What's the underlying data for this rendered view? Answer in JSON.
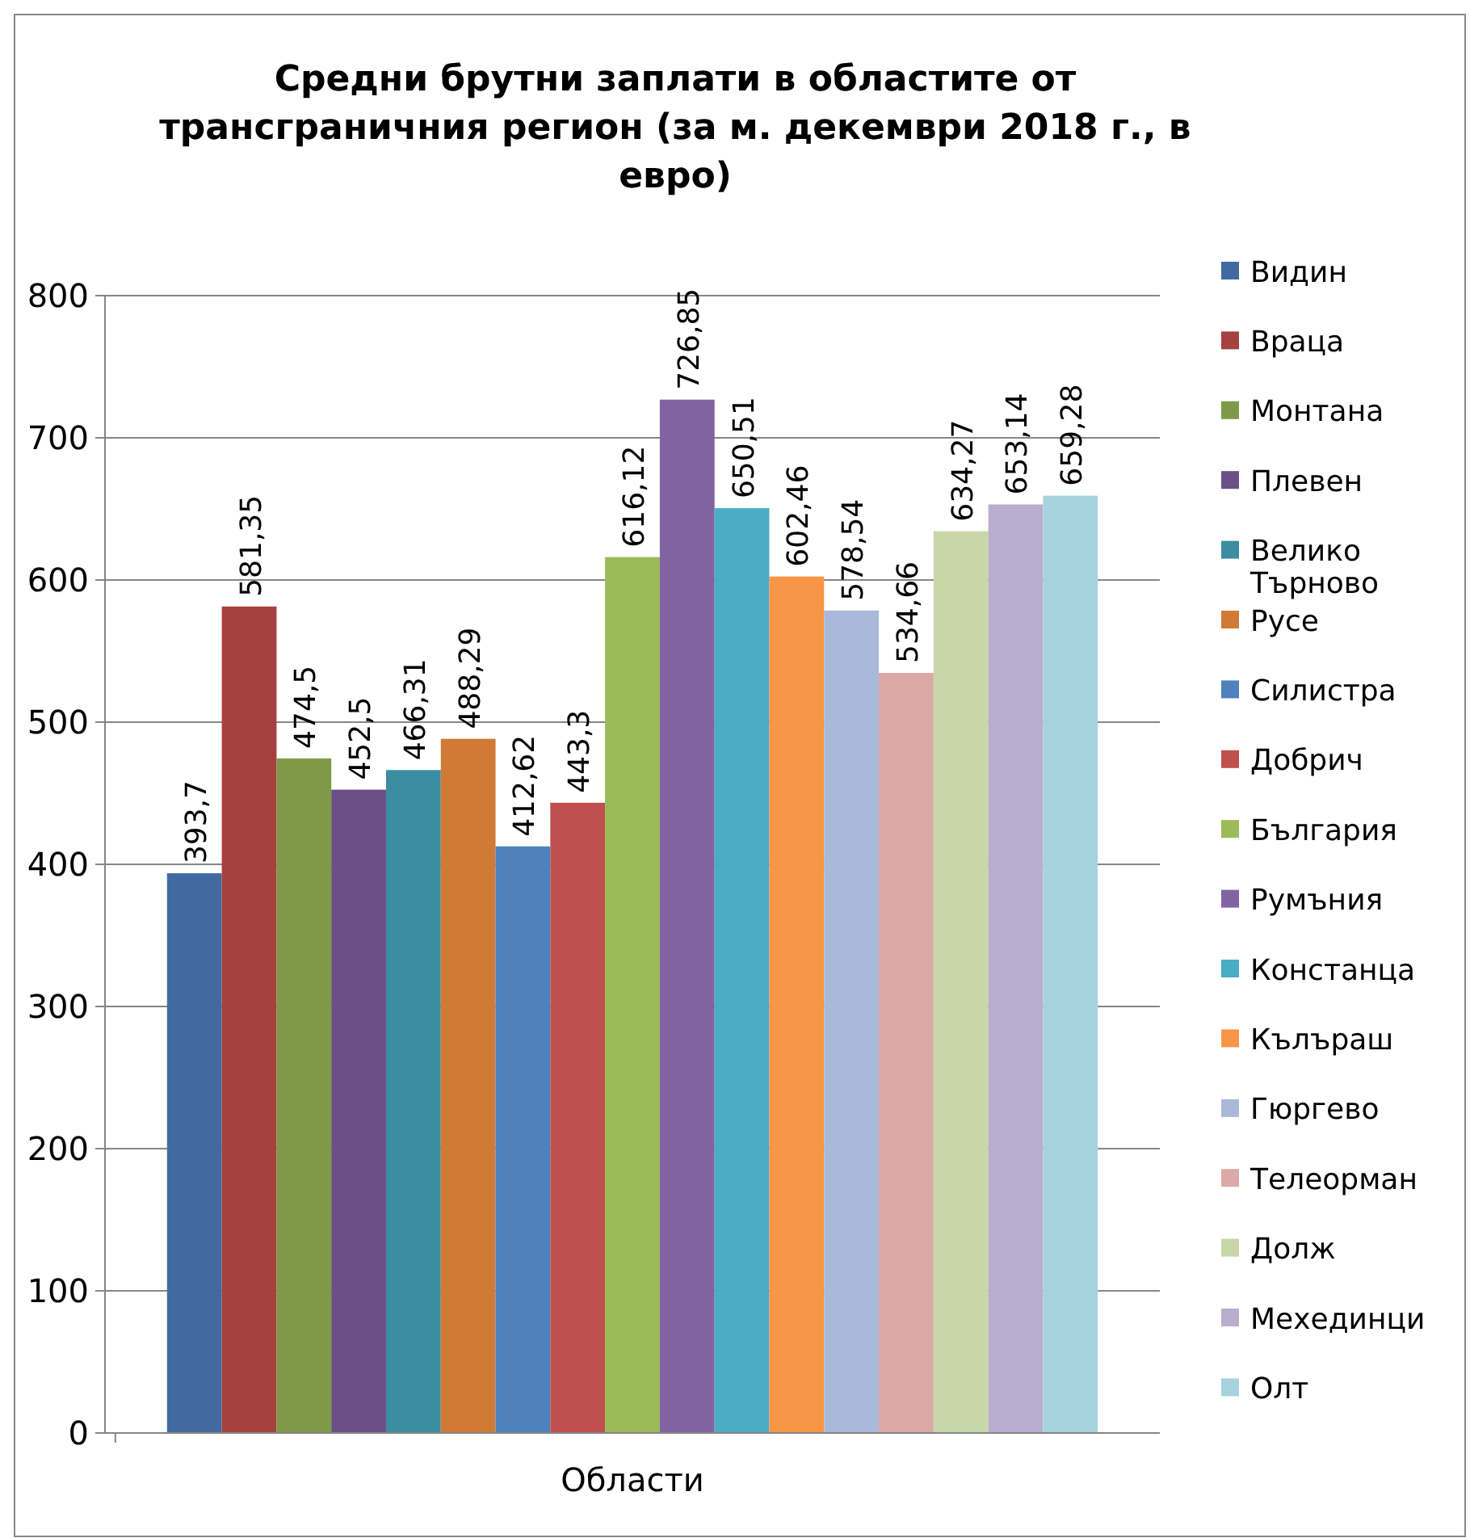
{
  "chart_data": {
    "type": "bar",
    "title": "Средни брутни заплати в областите от трансграничния регион (за м. декември 2018 г., в евро)",
    "categories": [
      "Области"
    ],
    "ylim": [
      0,
      800
    ],
    "yticks": [
      0,
      100,
      200,
      300,
      400,
      500,
      600,
      700,
      800
    ],
    "grid": "y",
    "legend": "right",
    "series": [
      {
        "name": "Видин",
        "color": "#416ba0",
        "values": [
          393.7
        ],
        "value_labels": [
          "393,7"
        ]
      },
      {
        "name": "Враца",
        "color": "#a5413e",
        "values": [
          581.35
        ],
        "value_labels": [
          "581,35"
        ]
      },
      {
        "name": "Монтана",
        "color": "#7e9a48",
        "values": [
          474.5
        ],
        "value_labels": [
          "474,5"
        ]
      },
      {
        "name": "Плевен",
        "color": "#6a5087",
        "values": [
          452.5
        ],
        "value_labels": [
          "452,5"
        ]
      },
      {
        "name": "Велико Търново",
        "color": "#3a8da3",
        "values": [
          466.31
        ],
        "value_labels": [
          "466,31"
        ]
      },
      {
        "name": "Русе",
        "color": "#cf7b36",
        "values": [
          488.29
        ],
        "value_labels": [
          "488,29"
        ]
      },
      {
        "name": "Силистра",
        "color": "#4f81bd",
        "values": [
          412.62
        ],
        "value_labels": [
          "412,62"
        ]
      },
      {
        "name": "Добрич",
        "color": "#c0504d",
        "values": [
          443.3
        ],
        "value_labels": [
          "443,3"
        ]
      },
      {
        "name": "България",
        "color": "#9bbb59",
        "values": [
          616.12
        ],
        "value_labels": [
          "616,12"
        ]
      },
      {
        "name": "Румъния",
        "color": "#8064a2",
        "values": [
          726.85
        ],
        "value_labels": [
          "726,85"
        ]
      },
      {
        "name": "Констанца",
        "color": "#4bacc6",
        "values": [
          650.51
        ],
        "value_labels": [
          "650,51"
        ]
      },
      {
        "name": "Кълъраш",
        "color": "#f79646",
        "values": [
          602.46
        ],
        "value_labels": [
          "602,46"
        ]
      },
      {
        "name": "Гюргево",
        "color": "#aab9d9",
        "values": [
          578.54
        ],
        "value_labels": [
          "578,54"
        ]
      },
      {
        "name": "Телеорман",
        "color": "#dba8a6",
        "values": [
          534.66
        ],
        "value_labels": [
          "534,66"
        ]
      },
      {
        "name": "Долж",
        "color": "#c7d7a8",
        "values": [
          634.27
        ],
        "value_labels": [
          "634,27"
        ]
      },
      {
        "name": "Мехединци",
        "color": "#b9aece",
        "values": [
          653.14
        ],
        "value_labels": [
          "653,14"
        ]
      },
      {
        "name": "Олт",
        "color": "#a8d2dd",
        "values": [
          659.28
        ],
        "value_labels": [
          "659,28"
        ]
      }
    ]
  }
}
